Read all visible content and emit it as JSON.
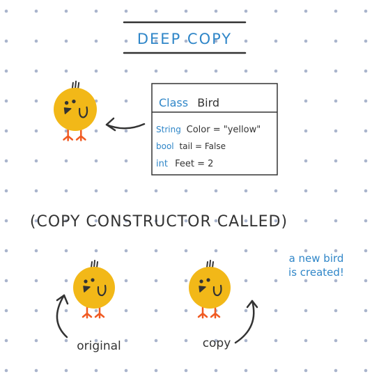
{
  "title": "DEEP COPY",
  "class_box": {
    "header_keyword": "Class",
    "header_name": "Bird",
    "fields": [
      {
        "type": "String",
        "decl": "Color = \"yellow\""
      },
      {
        "type": "bool",
        "decl": "tail = False"
      },
      {
        "type": "int",
        "decl": "Feet = 2"
      }
    ]
  },
  "constructor_note": "(COPY CONSTRUCTOR CALLED)",
  "new_bird_note": [
    "a new bird",
    "is created!"
  ],
  "labels": {
    "original": "original",
    "copy": "copy"
  },
  "colors": {
    "accent_blue": "#2f86c8",
    "ink": "#333333",
    "bird_yellow": "#f2b818",
    "feet_orange": "#f05a22",
    "dots": "#a9b4cc"
  }
}
